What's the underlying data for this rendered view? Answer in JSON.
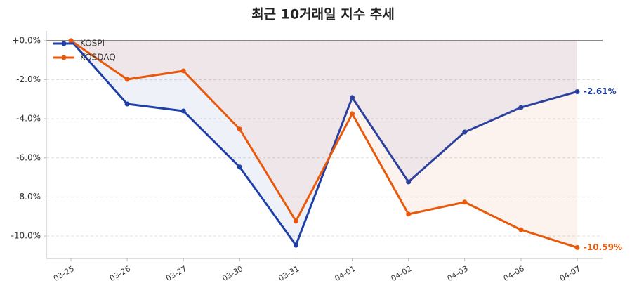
{
  "chart_data": {
    "type": "line",
    "title": "최근 10거래일 지수 추세",
    "categories": [
      "03-25",
      "03-26",
      "03-27",
      "03-30",
      "03-31",
      "04-01",
      "04-02",
      "04-03",
      "04-06",
      "04-07"
    ],
    "series": [
      {
        "name": "KOSPI",
        "color": "#1f3fa8",
        "fill": true,
        "values": [
          0,
          -3.24,
          -3.6,
          -6.47,
          -10.47,
          -2.91,
          -7.23,
          -4.68,
          -3.42,
          -2.61
        ],
        "value_labels": [
          null,
          null,
          null,
          null,
          null,
          null,
          null,
          null,
          null,
          "-2.61%"
        ]
      },
      {
        "name": "KOSDAQ",
        "color": "#e8590c",
        "fill": true,
        "values": [
          0,
          -1.98,
          -1.55,
          -4.53,
          -9.24,
          -3.74,
          -8.88,
          -8.27,
          -9.68,
          -10.59
        ],
        "value_labels": [
          null,
          null,
          null,
          null,
          null,
          null,
          null,
          null,
          null,
          "-10.59%"
        ]
      }
    ],
    "ylim": [
      -11.15,
      0.5
    ],
    "yticks": [
      {
        "value": 0,
        "label": "+0.0%"
      },
      {
        "value": -2,
        "label": "-2.0%"
      },
      {
        "value": -4,
        "label": "-4.0%"
      },
      {
        "value": -6,
        "label": "-6.0%"
      },
      {
        "value": -8,
        "label": "-8.0%"
      },
      {
        "value": -10,
        "label": "-10.0%"
      }
    ],
    "grid": true,
    "legend": "upper-left"
  }
}
